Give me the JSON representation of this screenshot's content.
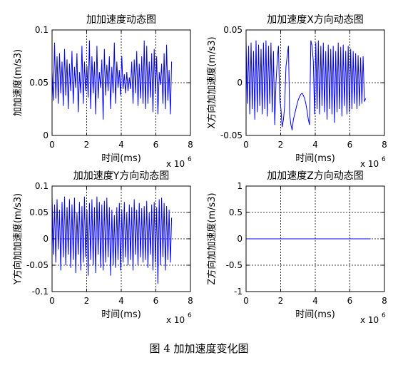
{
  "caption": "图 4  加加速度变化图",
  "chart_data": [
    {
      "type": "line",
      "title": "加加速度动态图",
      "xlabel": "时间(ms)",
      "ylabel": "加加速度(m/s3)",
      "x_exponent_label": "x 10",
      "x_exponent": "6",
      "xlim": [
        0,
        8
      ],
      "ylim": [
        0,
        0.1
      ],
      "xticks": [
        "0",
        "2",
        "4",
        "6",
        "8"
      ],
      "yticks": [
        "0",
        "0.05",
        "0.1"
      ],
      "grid": true,
      "color": "#0000ff",
      "x_start": 0,
      "x_step": 0.072,
      "values": [
        0.06,
        0.033,
        0.088,
        0.035,
        0.075,
        0.03,
        0.078,
        0.04,
        0.07,
        0.028,
        0.082,
        0.038,
        0.072,
        0.025,
        0.068,
        0.042,
        0.08,
        0.03,
        0.065,
        0.045,
        0.078,
        0.022,
        0.06,
        0.04,
        0.085,
        0.03,
        0.07,
        0.042,
        0.066,
        0.036,
        0.09,
        0.025,
        0.075,
        0.04,
        0.07,
        0.02,
        0.085,
        0.035,
        0.06,
        0.045,
        0.072,
        0.015,
        0.082,
        0.038,
        0.067,
        0.042,
        0.075,
        0.025,
        0.065,
        0.04,
        0.088,
        0.03,
        0.07,
        0.045,
        0.062,
        0.038,
        0.075,
        0.044,
        0.058,
        0.04,
        0.06,
        0.042,
        0.055,
        0.044,
        0.07,
        0.03,
        0.072,
        0.04,
        0.08,
        0.028,
        0.068,
        0.035,
        0.075,
        0.03,
        0.09,
        0.025,
        0.085,
        0.03,
        0.07,
        0.036,
        0.078,
        0.022,
        0.082,
        0.04,
        0.075,
        0.02,
        0.06,
        0.048,
        0.068,
        0.03,
        0.078,
        0.025,
        0.086,
        0.033,
        0.062,
        0.02,
        0.07
      ]
    },
    {
      "type": "line",
      "title": "加加速度X方向动态图",
      "xlabel": "时间(ms)",
      "ylabel": "X方向加加速度(m/s3)",
      "x_exponent_label": "x 10",
      "x_exponent": "6",
      "xlim": [
        0,
        8
      ],
      "ylim": [
        -0.05,
        0.05
      ],
      "xticks": [
        "0",
        "2",
        "4",
        "6",
        "8"
      ],
      "yticks": [
        "-0.05",
        "0",
        "0.05"
      ],
      "grid": true,
      "color": "#0000ff",
      "x_start": 0,
      "x_step": 0.072,
      "values": [
        0.04,
        -0.02,
        0.035,
        -0.03,
        0.038,
        -0.025,
        0.03,
        -0.035,
        0.04,
        -0.028,
        0.036,
        -0.022,
        0.032,
        -0.03,
        0.038,
        -0.025,
        0.04,
        -0.032,
        0.035,
        -0.02,
        0.038,
        -0.028,
        0.03,
        -0.04,
        0.0,
        0.02,
        0.035,
        -0.015,
        -0.025,
        -0.042,
        -0.035,
        -0.022,
        0.015,
        0.025,
        0.035,
        -0.03,
        -0.04,
        -0.045,
        -0.035,
        -0.03,
        -0.025,
        -0.02,
        -0.016,
        -0.013,
        -0.011,
        -0.01,
        -0.012,
        -0.015,
        -0.02,
        -0.027,
        -0.035,
        -0.04,
        0.04,
        0.035,
        0.02,
        -0.03,
        0.038,
        -0.025,
        0.04,
        -0.03,
        0.035,
        -0.022,
        0.038,
        -0.028,
        0.03,
        -0.035,
        0.036,
        -0.025,
        0.032,
        -0.03,
        0.035,
        -0.038,
        0.03,
        -0.028,
        0.038,
        -0.025,
        0.034,
        -0.032,
        0.036,
        -0.022,
        0.03,
        -0.03,
        0.035,
        -0.028,
        0.032,
        -0.025,
        0.03,
        -0.02,
        0.028,
        -0.025,
        0.026,
        -0.022,
        0.024,
        -0.02,
        0.025,
        -0.018,
        -0.015
      ]
    },
    {
      "type": "line",
      "title": "加加速度Y方向动态图",
      "xlabel": "时间(ms)",
      "ylabel": "Y方向加加速度(m/s3)",
      "x_exponent_label": "x 10",
      "x_exponent": "6",
      "xlim": [
        0,
        8
      ],
      "ylim": [
        -0.1,
        0.1
      ],
      "xticks": [
        "0",
        "2",
        "4",
        "6",
        "8"
      ],
      "yticks": [
        "-0.1",
        "-0.05",
        "0",
        "0.05",
        "0.1"
      ],
      "grid": true,
      "color": "#0000ff",
      "x_start": 0,
      "x_step": 0.072,
      "values": [
        0.08,
        -0.03,
        0.065,
        -0.045,
        0.075,
        -0.02,
        0.055,
        -0.06,
        0.07,
        -0.035,
        0.08,
        -0.05,
        0.06,
        -0.03,
        0.075,
        -0.055,
        0.065,
        -0.04,
        0.078,
        -0.065,
        0.05,
        -0.03,
        0.07,
        -0.06,
        0.062,
        -0.045,
        0.08,
        -0.035,
        0.055,
        -0.07,
        0.068,
        -0.04,
        0.075,
        -0.05,
        0.06,
        -0.065,
        0.08,
        -0.03,
        0.07,
        -0.055,
        0.065,
        -0.06,
        0.072,
        -0.045,
        0.078,
        -0.035,
        0.06,
        -0.07,
        0.055,
        -0.05,
        0.045,
        -0.055,
        0.06,
        -0.04,
        0.068,
        -0.06,
        0.055,
        -0.045,
        0.07,
        -0.035,
        0.05,
        -0.05,
        0.065,
        -0.04,
        0.06,
        -0.06,
        0.075,
        -0.03,
        0.055,
        -0.05,
        0.068,
        -0.035,
        0.058,
        -0.045,
        0.062,
        -0.04,
        0.072,
        -0.055,
        0.05,
        -0.03,
        0.065,
        -0.06,
        0.07,
        -0.045,
        0.06,
        -0.085,
        0.075,
        -0.05,
        0.078,
        -0.035,
        0.068,
        -0.06,
        0.062,
        -0.04,
        0.055,
        -0.045,
        0.04
      ]
    },
    {
      "type": "line",
      "title": "加加速度Z方向动态图",
      "xlabel": "时间(ms)",
      "ylabel": "Z方向加加速度(m/s3)",
      "x_exponent_label": "x 10",
      "x_exponent": "6",
      "xlim": [
        0,
        8
      ],
      "ylim": [
        -1,
        1
      ],
      "xticks": [
        "0",
        "2",
        "4",
        "6",
        "8"
      ],
      "yticks": [
        "-1",
        "-0.5",
        "0",
        "0.5",
        "1"
      ],
      "grid": true,
      "color": "#0000ff",
      "x": [
        0,
        7.2
      ],
      "values": [
        0,
        0
      ]
    }
  ]
}
